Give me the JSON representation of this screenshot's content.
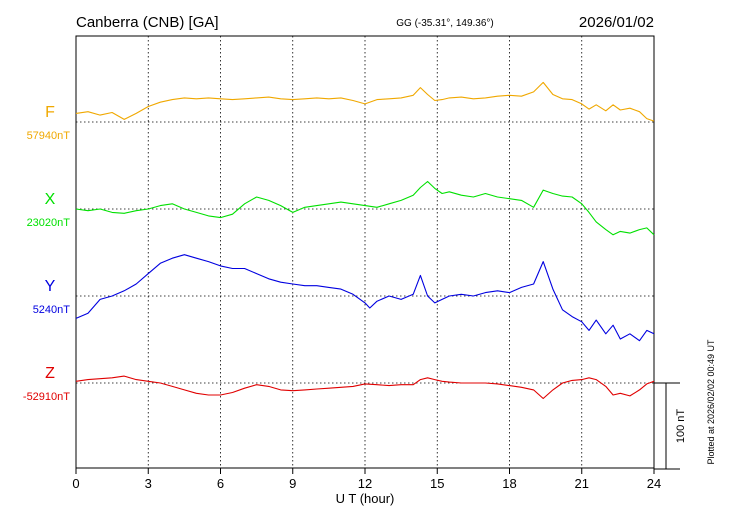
{
  "header": {
    "station": "Canberra (CNB)  [GA]",
    "coords": "GG (-35.31°, 149.36°)",
    "date": "2026/01/02"
  },
  "footer": {
    "plotted": "Plotted at 2026/02/02 00:49 UT"
  },
  "chart_data": {
    "type": "line",
    "xlabel": "U T (hour)",
    "xlim": [
      0,
      24
    ],
    "xticks": [
      "0",
      "3",
      "6",
      "9",
      "12",
      "15",
      "18",
      "21",
      "24"
    ],
    "grid": true,
    "scale_bar": {
      "label": "100 nT",
      "value_nT": 100
    },
    "series": [
      {
        "name": "F",
        "baseline_label": "57940nT",
        "baseline_nT": 57940,
        "color": "#f0a800",
        "x": [
          0,
          0.5,
          1,
          1.5,
          2,
          2.5,
          3,
          3.5,
          4,
          4.5,
          5,
          5.5,
          6,
          6.5,
          7,
          7.5,
          8,
          8.5,
          9,
          9.5,
          10,
          10.5,
          11,
          11.5,
          12,
          12.5,
          13,
          13.5,
          14,
          14.3,
          14.6,
          14.9,
          15.2,
          15.5,
          16,
          16.5,
          17,
          17.5,
          18,
          18.5,
          19,
          19.4,
          19.8,
          20.2,
          20.6,
          21,
          21.3,
          21.6,
          22,
          22.3,
          22.6,
          23,
          23.4,
          23.7,
          24
        ],
        "y": [
          57950,
          57952,
          57948,
          57951,
          57943,
          57950,
          57958,
          57963,
          57966,
          57968,
          57967,
          57968,
          57967,
          57966,
          57967,
          57968,
          57969,
          57967,
          57966,
          57967,
          57968,
          57967,
          57968,
          57965,
          57961,
          57966,
          57967,
          57968,
          57971,
          57980,
          57972,
          57965,
          57966,
          57968,
          57969,
          57967,
          57968,
          57970,
          57971,
          57970,
          57975,
          57986,
          57972,
          57967,
          57966,
          57961,
          57955,
          57960,
          57953,
          57960,
          57954,
          57956,
          57952,
          57944,
          57941
        ]
      },
      {
        "name": "X",
        "baseline_label": "23020nT",
        "baseline_nT": 23020,
        "color": "#00e000",
        "x": [
          0,
          0.5,
          1,
          1.5,
          2,
          2.5,
          3,
          3.5,
          4,
          4.5,
          5,
          5.5,
          6,
          6.5,
          7,
          7.5,
          8,
          8.5,
          9,
          9.5,
          10,
          10.5,
          11,
          11.5,
          12,
          12.5,
          13,
          13.5,
          14,
          14.3,
          14.6,
          14.9,
          15.2,
          15.5,
          16,
          16.5,
          17,
          17.5,
          18,
          18.5,
          19,
          19.4,
          19.8,
          20.2,
          20.6,
          21,
          21.3,
          21.6,
          22,
          22.3,
          22.6,
          23,
          23.4,
          23.7,
          24
        ],
        "y": [
          23020,
          23018,
          23020,
          23016,
          23015,
          23018,
          23020,
          23024,
          23026,
          23020,
          23016,
          23012,
          23010,
          23014,
          23026,
          23034,
          23030,
          23024,
          23016,
          23022,
          23024,
          23026,
          23028,
          23026,
          23024,
          23022,
          23026,
          23030,
          23036,
          23045,
          23052,
          23044,
          23038,
          23040,
          23036,
          23034,
          23038,
          23034,
          23032,
          23030,
          23022,
          23042,
          23038,
          23035,
          23034,
          23026,
          23016,
          23005,
          22996,
          22990,
          22994,
          22992,
          22996,
          22998,
          22990
        ]
      },
      {
        "name": "Y",
        "baseline_label": "5240nT",
        "baseline_nT": 5240,
        "color": "#0000e0",
        "x": [
          0,
          0.5,
          1,
          1.5,
          2,
          2.5,
          3,
          3.5,
          4,
          4.5,
          5,
          5.5,
          6,
          6.5,
          7,
          7.5,
          8,
          8.5,
          9,
          9.5,
          10,
          10.5,
          11,
          11.5,
          12,
          12.2,
          12.5,
          13,
          13.5,
          14,
          14.3,
          14.6,
          14.9,
          15.2,
          15.5,
          16,
          16.5,
          17,
          17.5,
          18,
          18.5,
          19,
          19.4,
          19.8,
          20.2,
          20.6,
          21,
          21.3,
          21.6,
          22,
          22.3,
          22.6,
          23,
          23.4,
          23.7,
          24
        ],
        "y": [
          5214,
          5220,
          5236,
          5240,
          5246,
          5254,
          5266,
          5278,
          5284,
          5288,
          5284,
          5280,
          5275,
          5272,
          5272,
          5266,
          5260,
          5256,
          5254,
          5252,
          5252,
          5250,
          5248,
          5242,
          5232,
          5226,
          5234,
          5240,
          5236,
          5242,
          5264,
          5240,
          5232,
          5236,
          5240,
          5242,
          5240,
          5244,
          5246,
          5244,
          5250,
          5254,
          5280,
          5248,
          5224,
          5216,
          5210,
          5200,
          5212,
          5196,
          5206,
          5190,
          5196,
          5188,
          5200,
          5196
        ]
      },
      {
        "name": "Z",
        "baseline_label": "-52910nT",
        "baseline_nT": -52910,
        "color": "#e00000",
        "x": [
          0,
          0.5,
          1,
          1.5,
          2,
          2.5,
          3,
          3.5,
          4,
          4.5,
          5,
          5.5,
          6,
          6.5,
          7,
          7.5,
          8,
          8.5,
          9,
          9.5,
          10,
          10.5,
          11,
          11.5,
          12,
          12.5,
          13,
          13.5,
          14,
          14.3,
          14.6,
          14.9,
          15.2,
          15.5,
          16,
          16.5,
          17,
          17.5,
          18,
          18.5,
          19,
          19.4,
          19.8,
          20.2,
          20.6,
          21,
          21.3,
          21.6,
          22,
          22.3,
          22.6,
          23,
          23.4,
          23.7,
          24
        ],
        "y": [
          -52908,
          -52906,
          -52905,
          -52904,
          -52902,
          -52906,
          -52908,
          -52910,
          -52914,
          -52918,
          -52922,
          -52924,
          -52924,
          -52921,
          -52916,
          -52912,
          -52914,
          -52918,
          -52919,
          -52918,
          -52917,
          -52916,
          -52915,
          -52914,
          -52911,
          -52912,
          -52913,
          -52912,
          -52912,
          -52906,
          -52904,
          -52906,
          -52908,
          -52909,
          -52910,
          -52910,
          -52910,
          -52911,
          -52913,
          -52915,
          -52918,
          -52928,
          -52918,
          -52910,
          -52907,
          -52906,
          -52904,
          -52906,
          -52914,
          -52924,
          -52922,
          -52925,
          -52918,
          -52911,
          -52908
        ]
      }
    ]
  }
}
